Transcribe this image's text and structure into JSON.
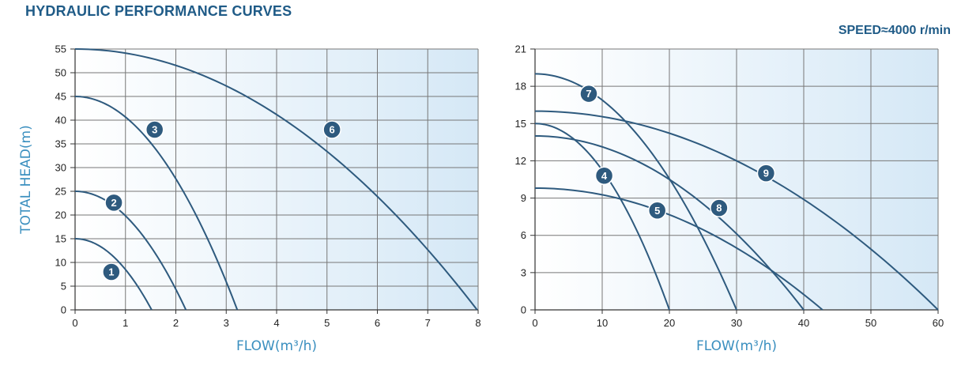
{
  "title": "HYDRAULIC PERFORMANCE CURVES",
  "speed_label": "SPEED≈4000 r/min",
  "colors": {
    "curve": "#2e5a7e",
    "badge": "#2e5a7e",
    "grid": "#777777",
    "title": "#1f5b87",
    "axis_title": "#3a8fbf",
    "fill_light": "#ffffff",
    "fill_dark": "#d5e8f6"
  },
  "chart_data": [
    {
      "type": "line",
      "xlabel": "FLOW(m³/h)",
      "ylabel": "TOTAL HEAD(m)",
      "xlim": [
        0,
        8
      ],
      "ylim": [
        0,
        55
      ],
      "x_ticks": [
        "0",
        "1",
        "2",
        "3",
        "4",
        "5",
        "6",
        "7",
        "8"
      ],
      "y_ticks": [
        "0",
        "5",
        "10",
        "15",
        "20",
        "25",
        "30",
        "35",
        "40",
        "45",
        "50",
        "55"
      ],
      "grid": true,
      "series": [
        {
          "name": "1",
          "max_head": 15,
          "max_flow": 1.52,
          "x": [
            0,
            0.5,
            1.0,
            1.3,
            1.52
          ],
          "y": [
            15,
            13.4,
            8.6,
            4.0,
            0
          ],
          "label_at": [
            0.72,
            8
          ]
        },
        {
          "name": "2",
          "max_head": 25,
          "max_flow": 2.2,
          "x": [
            0,
            0.5,
            1.0,
            1.5,
            2.0,
            2.2
          ],
          "y": [
            25,
            23.7,
            19.8,
            13.4,
            4.3,
            0
          ],
          "label_at": [
            0.77,
            22.6
          ]
        },
        {
          "name": "3",
          "max_head": 45,
          "max_flow": 3.22,
          "x": [
            0,
            1.0,
            1.5,
            2.0,
            2.5,
            3.0,
            3.22
          ],
          "y": [
            45,
            40.7,
            35.3,
            27.6,
            17.6,
            5.5,
            0
          ],
          "label_at": [
            1.58,
            38
          ]
        },
        {
          "name": "6",
          "max_head": 55,
          "max_flow": 7.98,
          "x": [
            0,
            2.0,
            3.0,
            4.0,
            5.0,
            6.0,
            7.0,
            7.98
          ],
          "y": [
            55,
            51.5,
            47.2,
            41.2,
            33.4,
            23.7,
            12.2,
            0
          ],
          "label_at": [
            5.1,
            38
          ]
        }
      ]
    },
    {
      "type": "line",
      "xlabel": "FLOW(m³/h)",
      "ylabel": "",
      "xlim": [
        0,
        60
      ],
      "ylim": [
        0,
        21
      ],
      "x_ticks": [
        "0",
        "10",
        "20",
        "30",
        "40",
        "50",
        "60"
      ],
      "y_ticks": [
        "0",
        "3",
        "6",
        "9",
        "12",
        "15",
        "18",
        "21"
      ],
      "grid": true,
      "series": [
        {
          "name": "4",
          "max_head": 15,
          "max_flow": 20,
          "x": [
            0,
            5,
            10,
            15,
            20
          ],
          "y": [
            15,
            14.1,
            11.3,
            6.6,
            0
          ],
          "label_at": [
            10.3,
            10.8
          ]
        },
        {
          "name": "5",
          "max_head": 9.8,
          "max_flow": 42.8,
          "x": [
            0,
            10,
            20,
            30,
            40,
            42.8
          ],
          "y": [
            9.8,
            9.3,
            7.7,
            5.0,
            1.3,
            0
          ],
          "label_at": [
            18.2,
            8
          ]
        },
        {
          "name": "7",
          "max_head": 19,
          "max_flow": 30,
          "x": [
            0,
            10,
            15,
            20,
            25,
            30
          ],
          "y": [
            19,
            16.9,
            14.2,
            10.5,
            5.8,
            0
          ],
          "label_at": [
            8,
            17.4
          ]
        },
        {
          "name": "8",
          "max_head": 14,
          "max_flow": 40,
          "x": [
            0,
            10,
            20,
            25,
            30,
            35,
            40
          ],
          "y": [
            14,
            12.8,
            9.7,
            7.5,
            5.0,
            2.7,
            0
          ],
          "label_at": [
            27.4,
            8.2
          ]
        },
        {
          "name": "9",
          "max_head": 16,
          "max_flow": 60,
          "x": [
            0,
            10,
            20,
            30,
            40,
            50,
            60
          ],
          "y": [
            16,
            15.3,
            13.7,
            11.4,
            8.2,
            4.6,
            0
          ],
          "label_at": [
            34.4,
            11
          ]
        }
      ]
    }
  ]
}
